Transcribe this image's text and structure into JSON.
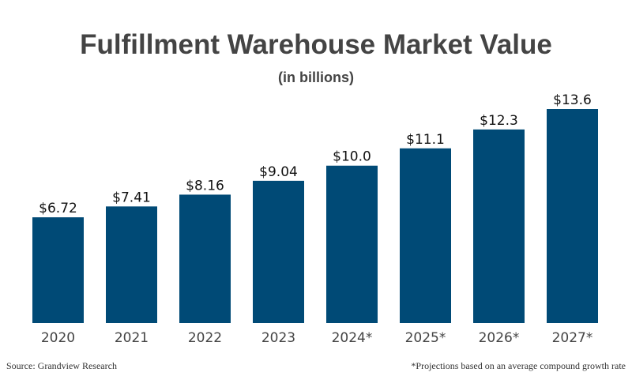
{
  "chart_data": {
    "type": "bar",
    "title": "Fulfillment Warehouse Market Value",
    "subtitle": "(in billions)",
    "categories": [
      "2020",
      "2021",
      "2022",
      "2023",
      "2024*",
      "2025*",
      "2026*",
      "2027*"
    ],
    "values": [
      6.72,
      7.41,
      8.16,
      9.04,
      10.0,
      11.1,
      12.3,
      13.6
    ],
    "data_labels": [
      "$6.72",
      "$7.41",
      "$8.16",
      "$9.04",
      "$10.0",
      "$11.1",
      "$12.3",
      "$13.6"
    ],
    "xlabel": "",
    "ylabel": "",
    "ylim": [
      0,
      13.6
    ],
    "grid": false,
    "bar_color": "#004a76",
    "source": "Source: Grandview Research",
    "footnote": "*Projections based on an average compound growth rate"
  }
}
